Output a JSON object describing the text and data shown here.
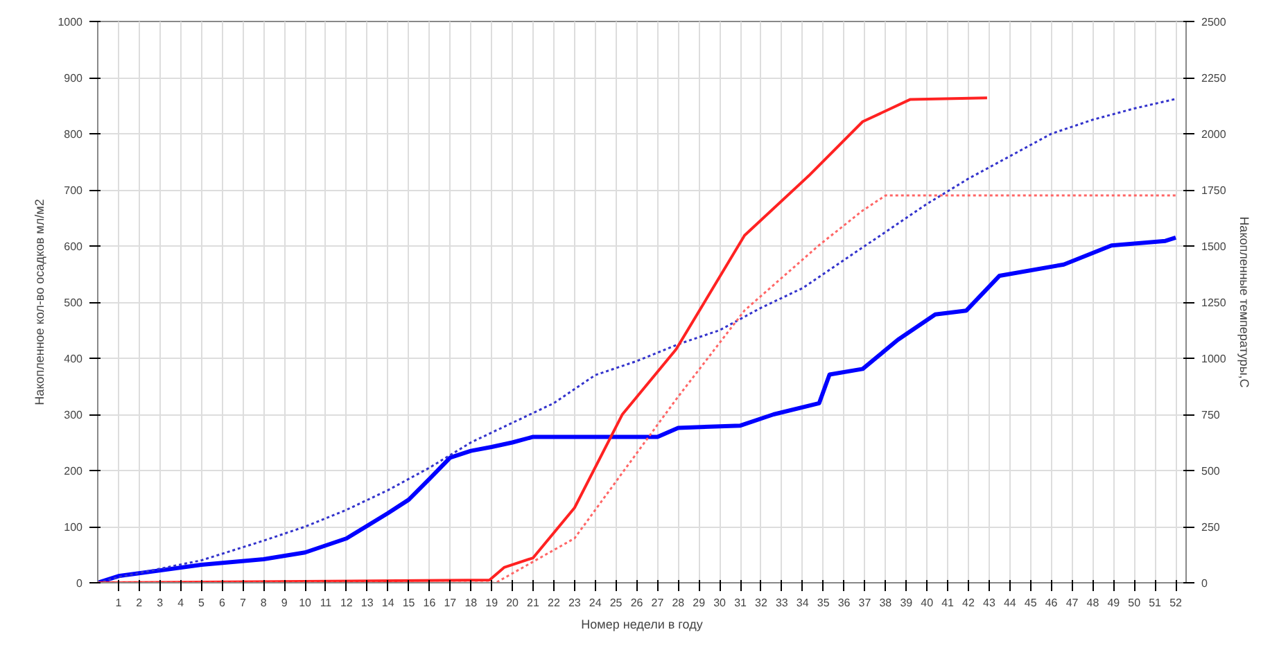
{
  "chart_data": {
    "type": "line",
    "xlabel": "Номер недели в году",
    "ylabel": "Накопленное кол-во осадков мл/м2",
    "y2label": "Накопленные температуры,С",
    "xlim": [
      0,
      52.5
    ],
    "xticks": [
      1,
      2,
      3,
      4,
      5,
      6,
      7,
      8,
      9,
      10,
      11,
      12,
      13,
      14,
      15,
      16,
      17,
      18,
      19,
      20,
      21,
      22,
      23,
      24,
      25,
      26,
      27,
      28,
      29,
      30,
      31,
      32,
      33,
      34,
      35,
      36,
      37,
      38,
      39,
      40,
      41,
      42,
      43,
      44,
      45,
      46,
      47,
      48,
      49,
      50,
      51,
      52
    ],
    "ylim": [
      0,
      1000
    ],
    "yticks": [
      0,
      100,
      200,
      300,
      400,
      500,
      600,
      700,
      800,
      900,
      1000
    ],
    "y2lim": [
      0,
      2500
    ],
    "y2ticks": [
      0,
      250,
      500,
      750,
      1000,
      1250,
      1500,
      1750,
      2000,
      2250,
      2500
    ],
    "grid": true,
    "marker": "none",
    "series": [
      {
        "color": "#0000ff",
        "line_style": "solid",
        "x": [
          0,
          1,
          5,
          8,
          10,
          12,
          14,
          15,
          16,
          17,
          18,
          19,
          20,
          21,
          27,
          28,
          31,
          32.6,
          34.8,
          35.3,
          36.9,
          38.6,
          40.4,
          41.9,
          43.5,
          46.6,
          48.9,
          51.5,
          52
        ],
        "values": [
          0,
          12,
          32,
          42,
          54,
          79,
          124,
          148,
          185,
          223,
          235,
          242,
          250,
          260,
          260,
          276,
          280,
          300,
          320,
          371,
          381,
          433,
          478,
          485,
          547,
          567,
          601,
          609,
          615
        ]
      },
      {
        "color": "#3333cc",
        "line_style": "dotted",
        "x": [
          0,
          1,
          5,
          8,
          10,
          12,
          14,
          16,
          18,
          20,
          22,
          24,
          26,
          28,
          30,
          32,
          34,
          36,
          38,
          40,
          42,
          44,
          46,
          48,
          50,
          52
        ],
        "values": [
          0,
          10,
          40,
          75,
          100,
          130,
          165,
          205,
          250,
          285,
          320,
          370,
          395,
          425,
          450,
          490,
          525,
          575,
          625,
          675,
          720,
          760,
          800,
          825,
          845,
          862
        ]
      },
      {
        "color": "#ff2222",
        "line_style": "solid",
        "axis": "y2",
        "x": [
          0,
          18.9,
          19.6,
          21,
          23,
          25.3,
          27.9,
          31.2,
          34.3,
          36.9,
          39.2,
          42.9
        ],
        "values": [
          0,
          12,
          68,
          111,
          334,
          749,
          1040,
          1547,
          1813,
          2054,
          2153,
          2160
        ]
      },
      {
        "color": "#ff6666",
        "line_style": "dotted",
        "axis": "y2",
        "x": [
          0,
          19.2,
          23,
          25.3,
          27.9,
          31.2,
          34.8,
          36.9,
          38,
          52
        ],
        "values": [
          0,
          0,
          198,
          489,
          817,
          1213,
          1504,
          1658,
          1725,
          1725
        ]
      }
    ]
  }
}
